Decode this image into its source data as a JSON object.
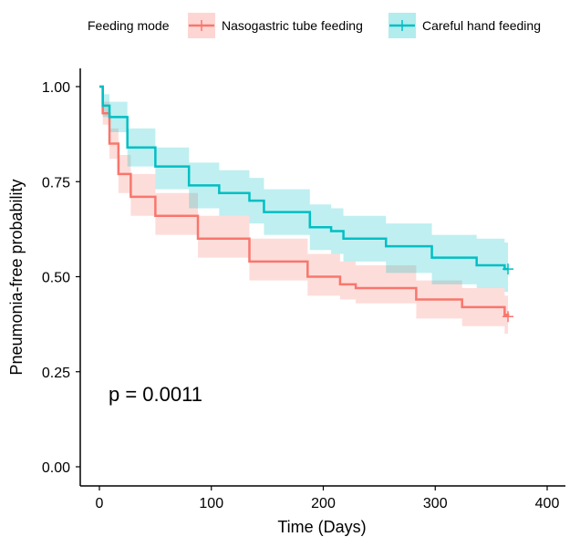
{
  "chart_data": {
    "type": "line",
    "subtype": "kaplan-meier survival with confidence bands",
    "xlabel": "Time (Days)",
    "ylabel": "Pneumonia-free probability",
    "xlim": [
      0,
      400
    ],
    "ylim": [
      0,
      1
    ],
    "xticks": [
      "0",
      "100",
      "200",
      "300",
      "400"
    ],
    "yticks": [
      "0.00",
      "0.25",
      "0.50",
      "0.75",
      "1.00"
    ],
    "grid": false,
    "legend": {
      "title": "Feeding mode",
      "placement": "top"
    },
    "annotation": "p = 0.0011",
    "series": [
      {
        "name": "Nasogastric tube feeding",
        "color": "#F8766D",
        "x": [
          0,
          3,
          9,
          17,
          28,
          50,
          88,
          134,
          186,
          215,
          229,
          283,
          324,
          362,
          365
        ],
        "y": [
          1.0,
          0.93,
          0.85,
          0.77,
          0.71,
          0.66,
          0.6,
          0.54,
          0.5,
          0.48,
          0.47,
          0.44,
          0.42,
          0.4,
          0.395
        ],
        "upper": [
          1.0,
          0.96,
          0.89,
          0.82,
          0.77,
          0.72,
          0.66,
          0.6,
          0.56,
          0.54,
          0.53,
          0.49,
          0.47,
          0.45,
          0.45
        ],
        "lower": [
          1.0,
          0.9,
          0.81,
          0.72,
          0.66,
          0.61,
          0.55,
          0.49,
          0.45,
          0.44,
          0.43,
          0.39,
          0.37,
          0.35,
          0.35
        ],
        "censored_at": 365
      },
      {
        "name": "Careful hand feeding",
        "color": "#00BFC4",
        "x": [
          0,
          3,
          9,
          25,
          50,
          80,
          107,
          134,
          147,
          188,
          207,
          218,
          256,
          297,
          337,
          362,
          365
        ],
        "y": [
          1.0,
          0.95,
          0.92,
          0.84,
          0.79,
          0.74,
          0.72,
          0.7,
          0.67,
          0.63,
          0.62,
          0.6,
          0.58,
          0.55,
          0.53,
          0.52,
          0.52
        ],
        "upper": [
          1.0,
          0.98,
          0.96,
          0.89,
          0.84,
          0.8,
          0.78,
          0.76,
          0.73,
          0.69,
          0.68,
          0.66,
          0.64,
          0.61,
          0.6,
          0.59,
          0.59
        ],
        "lower": [
          1.0,
          0.92,
          0.88,
          0.79,
          0.73,
          0.68,
          0.66,
          0.64,
          0.61,
          0.57,
          0.56,
          0.54,
          0.51,
          0.48,
          0.47,
          0.46,
          0.46
        ],
        "censored_at": 365
      }
    ]
  }
}
